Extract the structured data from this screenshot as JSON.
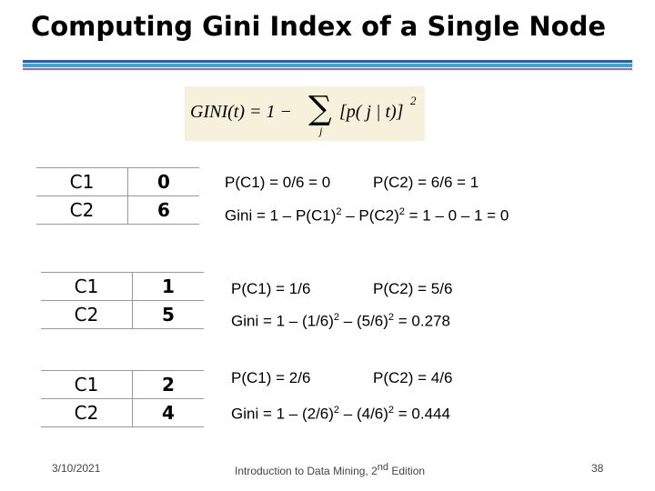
{
  "title": "Computing Gini Index of a Single Node",
  "formula": [
    "GINI(t) = 1 − ",
    "∑",
    "j",
    "[p( j | t)]",
    "2"
  ],
  "examples": [
    {
      "table": [
        [
          "C1",
          0
        ],
        [
          "C2",
          6
        ]
      ],
      "p_c1": "P(C1) = 0/6 = 0",
      "p_c2": "P(C2) = 6/6 = 1",
      "gini": [
        "Gini = 1 – P(C1)",
        "2",
        " – P(C2)",
        "2",
        " = 1 – 0 – 1 = 0"
      ]
    },
    {
      "table": [
        [
          "C1",
          1
        ],
        [
          "C2",
          5
        ]
      ],
      "p_c1": "P(C1) = 1/6",
      "p_c2": "P(C2) = 5/6",
      "gini": [
        "Gini = 1 – (1/6)",
        "2",
        " – (5/6)",
        "2",
        " = 0.278"
      ]
    },
    {
      "table": [
        [
          "C1",
          2
        ],
        [
          "C2",
          4
        ]
      ],
      "p_c1": "P(C1) = 2/6",
      "p_c2": "P(C2) = 4/6",
      "gini": [
        "Gini = 1 – (2/6)",
        "2",
        " – (4/6)",
        "2",
        " = 0.444"
      ]
    }
  ],
  "footer": {
    "date": "3/10/2021",
    "source": [
      "Introduction to Data Mining, 2",
      "nd",
      " Edition"
    ],
    "page": "38"
  }
}
